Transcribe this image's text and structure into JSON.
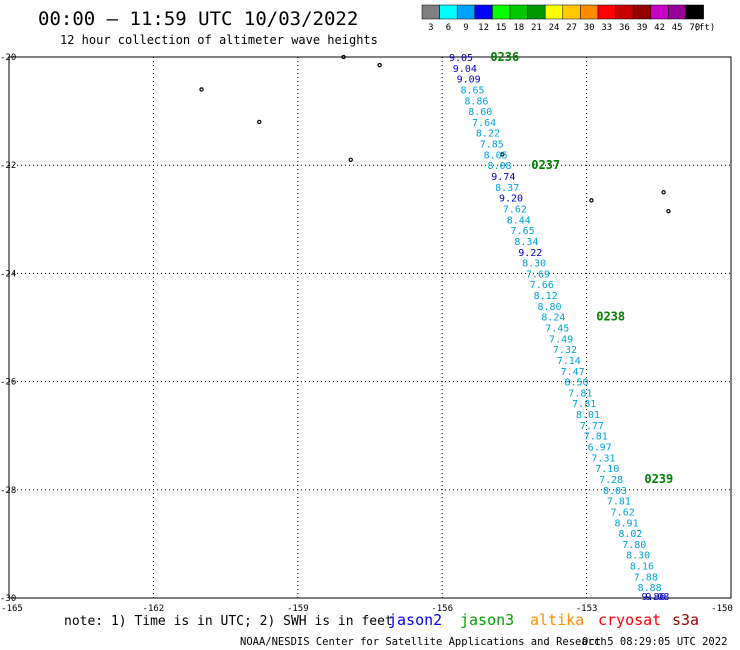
{
  "header": {
    "title": "00:00 – 11:59 UTC 10/03/2022",
    "subtitle": "12 hour collection of altimeter wave heights"
  },
  "legend": {
    "unit": "(ft)",
    "bins": [
      {
        "label": "3",
        "color": "#808080"
      },
      {
        "label": "6",
        "color": "#00ffff"
      },
      {
        "label": "9",
        "color": "#00a0ff"
      },
      {
        "label": "12",
        "color": "#0000ff"
      },
      {
        "label": "15",
        "color": "#00ff00"
      },
      {
        "label": "18",
        "color": "#00c800"
      },
      {
        "label": "21",
        "color": "#009600"
      },
      {
        "label": "24",
        "color": "#ffff00"
      },
      {
        "label": "27",
        "color": "#ffc800"
      },
      {
        "label": "30",
        "color": "#ff8c00"
      },
      {
        "label": "33",
        "color": "#ff0000"
      },
      {
        "label": "36",
        "color": "#c80000"
      },
      {
        "label": "39",
        "color": "#960000"
      },
      {
        "label": "42",
        "color": "#c800c8"
      },
      {
        "label": "45",
        "color": "#960096"
      },
      {
        "label": "70",
        "color": "#000000"
      }
    ]
  },
  "map": {
    "lon_range": [
      -165,
      -150
    ],
    "lat_range": [
      -30,
      -20
    ],
    "lon_ticks": [
      {
        "value": -165,
        "label": "-165"
      },
      {
        "value": -162,
        "label": "-162"
      },
      {
        "value": -159,
        "label": "-159"
      },
      {
        "value": -156,
        "label": "-156"
      },
      {
        "value": -153,
        "label": "-153"
      },
      {
        "value": -150,
        "label": "-150"
      }
    ],
    "lat_ticks": [
      {
        "value": -20,
        "label": "-20"
      },
      {
        "value": -22,
        "label": "-22"
      },
      {
        "value": -24,
        "label": "-24"
      },
      {
        "value": -26,
        "label": "-26"
      },
      {
        "value": -28,
        "label": "-28"
      },
      {
        "value": -30,
        "label": "-30"
      }
    ],
    "grid": true
  },
  "chart_data": {
    "type": "scatter",
    "xlabel": "",
    "ylabel": "",
    "series": [
      {
        "satellite": "jason3",
        "color_note": "significant wave height labels colored by satellite/value",
        "points": [
          {
            "lon": -155.86,
            "lat": -20.0,
            "swh": "9.05",
            "color": "#0000c8"
          },
          {
            "lon": -155.78,
            "lat": -20.2,
            "swh": "9.04",
            "color": "#0000c8"
          },
          {
            "lon": -155.7,
            "lat": -20.4,
            "swh": "9.09",
            "color": "#0000c8"
          },
          {
            "lon": -155.62,
            "lat": -20.6,
            "swh": "8.65",
            "color": "#00a0dc"
          },
          {
            "lon": -155.54,
            "lat": -20.8,
            "swh": "8.86",
            "color": "#00a0dc"
          },
          {
            "lon": -155.46,
            "lat": -21.0,
            "swh": "8.60",
            "color": "#00a0dc"
          },
          {
            "lon": -155.38,
            "lat": -21.2,
            "swh": "7.64",
            "color": "#00a0dc"
          },
          {
            "lon": -155.3,
            "lat": -21.4,
            "swh": "8.22",
            "color": "#00a0dc"
          },
          {
            "lon": -155.22,
            "lat": -21.6,
            "swh": "7.85",
            "color": "#00a0dc"
          },
          {
            "lon": -155.14,
            "lat": -21.8,
            "swh": "8.05",
            "color": "#00a0dc"
          },
          {
            "lon": -155.06,
            "lat": -22.0,
            "swh": "8.08",
            "color": "#00a0dc"
          },
          {
            "lon": -154.98,
            "lat": -22.2,
            "swh": "9.74",
            "color": "#0000c8"
          },
          {
            "lon": -154.9,
            "lat": -22.4,
            "swh": "8.37",
            "color": "#00a0dc"
          },
          {
            "lon": -154.82,
            "lat": -22.6,
            "swh": "9.20",
            "color": "#0000c8"
          },
          {
            "lon": -154.74,
            "lat": -22.8,
            "swh": "7.62",
            "color": "#00a0dc"
          },
          {
            "lon": -154.66,
            "lat": -23.0,
            "swh": "8.44",
            "color": "#00a0dc"
          },
          {
            "lon": -154.58,
            "lat": -23.2,
            "swh": "7.65",
            "color": "#00a0dc"
          },
          {
            "lon": -154.5,
            "lat": -23.4,
            "swh": "8.34",
            "color": "#00a0dc"
          },
          {
            "lon": -154.42,
            "lat": -23.6,
            "swh": "9.22",
            "color": "#0000c8"
          },
          {
            "lon": -154.34,
            "lat": -23.8,
            "swh": "8.30",
            "color": "#00a0dc"
          },
          {
            "lon": -154.26,
            "lat": -24.0,
            "swh": "7.69",
            "color": "#00a0dc"
          },
          {
            "lon": -154.18,
            "lat": -24.2,
            "swh": "7.66",
            "color": "#00a0dc"
          },
          {
            "lon": -154.1,
            "lat": -24.4,
            "swh": "8.12",
            "color": "#00a0dc"
          },
          {
            "lon": -154.02,
            "lat": -24.6,
            "swh": "8.80",
            "color": "#00a0dc"
          },
          {
            "lon": -153.94,
            "lat": -24.8,
            "swh": "8.24",
            "color": "#00a0dc"
          },
          {
            "lon": -153.86,
            "lat": -25.0,
            "swh": "7.45",
            "color": "#00a0dc"
          },
          {
            "lon": -153.78,
            "lat": -25.2,
            "swh": "7.49",
            "color": "#00a0dc"
          },
          {
            "lon": -153.7,
            "lat": -25.4,
            "swh": "7.32",
            "color": "#00a0dc"
          },
          {
            "lon": -153.62,
            "lat": -25.6,
            "swh": "7.14",
            "color": "#00a0dc"
          },
          {
            "lon": -153.54,
            "lat": -25.8,
            "swh": "7.47",
            "color": "#00a0dc"
          },
          {
            "lon": -153.46,
            "lat": -26.0,
            "swh": "8.50",
            "color": "#00a0dc"
          },
          {
            "lon": -153.38,
            "lat": -26.2,
            "swh": "7.81",
            "color": "#00a0dc"
          },
          {
            "lon": -153.3,
            "lat": -26.4,
            "swh": "7.81",
            "color": "#00a0dc"
          },
          {
            "lon": -153.22,
            "lat": -26.6,
            "swh": "8.01",
            "color": "#00a0dc"
          },
          {
            "lon": -153.14,
            "lat": -26.8,
            "swh": "7.77",
            "color": "#00a0dc"
          },
          {
            "lon": -153.06,
            "lat": -27.0,
            "swh": "7.81",
            "color": "#00a0dc"
          },
          {
            "lon": -152.98,
            "lat": -27.2,
            "swh": "6.97",
            "color": "#00a0dc"
          },
          {
            "lon": -152.9,
            "lat": -27.4,
            "swh": "7.31",
            "color": "#00a0dc"
          },
          {
            "lon": -152.82,
            "lat": -27.6,
            "swh": "7.10",
            "color": "#00a0dc"
          },
          {
            "lon": -152.74,
            "lat": -27.8,
            "swh": "7.28",
            "color": "#00a0dc"
          },
          {
            "lon": -152.66,
            "lat": -28.0,
            "swh": "8.03",
            "color": "#00a0dc"
          },
          {
            "lon": -152.58,
            "lat": -28.2,
            "swh": "7.81",
            "color": "#00a0dc"
          },
          {
            "lon": -152.5,
            "lat": -28.4,
            "swh": "7.62",
            "color": "#00a0dc"
          },
          {
            "lon": -152.42,
            "lat": -28.6,
            "swh": "8.91",
            "color": "#00a0dc"
          },
          {
            "lon": -152.34,
            "lat": -28.8,
            "swh": "8.02",
            "color": "#00a0dc"
          },
          {
            "lon": -152.26,
            "lat": -29.0,
            "swh": "7.80",
            "color": "#00a0dc"
          },
          {
            "lon": -152.18,
            "lat": -29.2,
            "swh": "8.30",
            "color": "#00a0dc"
          },
          {
            "lon": -152.1,
            "lat": -29.4,
            "swh": "8.16",
            "color": "#00a0dc"
          },
          {
            "lon": -152.02,
            "lat": -29.6,
            "swh": "7.88",
            "color": "#00a0dc"
          },
          {
            "lon": -151.94,
            "lat": -29.8,
            "swh": "8.88",
            "color": "#00a0dc"
          },
          {
            "lon": -151.86,
            "lat": -30.0,
            "swh": "9.86",
            "color": "#0000c8"
          },
          {
            "lon": -151.78,
            "lat": -30.2,
            "swh": "9.08",
            "color": "#0000c8"
          }
        ]
      }
    ],
    "time_labels": [
      {
        "lon": -155.0,
        "lat": -20.0,
        "label": "0236"
      },
      {
        "lon": -154.15,
        "lat": -22.0,
        "label": "0237"
      },
      {
        "lon": -152.8,
        "lat": -24.8,
        "label": "0238"
      },
      {
        "lon": -151.8,
        "lat": -27.8,
        "label": "0239"
      }
    ],
    "islands": [
      {
        "lon": -161.0,
        "lat": -20.6
      },
      {
        "lon": -159.8,
        "lat": -21.2
      },
      {
        "lon": -157.9,
        "lat": -21.9
      },
      {
        "lon": -157.3,
        "lat": -20.15
      },
      {
        "lon": -158.05,
        "lat": -20.0
      },
      {
        "lon": -152.9,
        "lat": -22.65
      },
      {
        "lon": -151.4,
        "lat": -22.5
      },
      {
        "lon": -151.3,
        "lat": -22.85
      },
      {
        "lon": -154.75,
        "lat": -21.8
      }
    ]
  },
  "footer": {
    "note": "note: 1) Time is in UTC; 2) SWH is in feet",
    "satellites": [
      {
        "name": "jason2",
        "color": "#0000ff"
      },
      {
        "name": "jason3",
        "color": "#00a000"
      },
      {
        "name": "altika",
        "color": "#ff8c00"
      },
      {
        "name": "cryosat",
        "color": "#ff0000"
      },
      {
        "name": "s3a",
        "color": "#960000"
      }
    ],
    "credit": "NOAA/NESDIS Center for Satellite Applications and Research",
    "timestamp": "Oct  5 08:29:05 UTC 2022"
  }
}
